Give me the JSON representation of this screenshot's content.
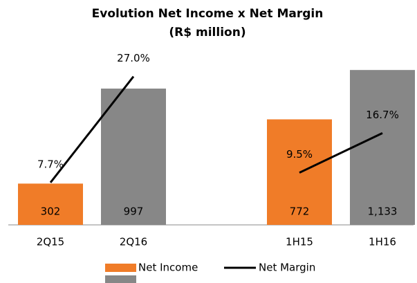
{
  "chart_data": {
    "type": "bar",
    "title": "Evolution Net Income x Net Margin",
    "subtitle": "(R$ million)",
    "categories": [
      "2Q15",
      "2Q16",
      null,
      "1H15",
      "1H16"
    ],
    "series": [
      {
        "name": "Net Income",
        "type": "bar",
        "colors": [
          "#f07c28",
          "#878787",
          null,
          "#f07c28",
          "#878787"
        ],
        "values": [
          302,
          997,
          null,
          772,
          1133
        ],
        "value_labels": [
          "302",
          "997",
          null,
          "772",
          "1,133"
        ]
      },
      {
        "name": "Net Margin",
        "type": "line",
        "axis": "y2",
        "color": "#000000",
        "values": [
          7.7,
          27.0,
          null,
          9.5,
          16.7
        ],
        "value_labels": [
          "7.7%",
          "27.0%",
          null,
          "9.5%",
          "16.7%"
        ]
      }
    ],
    "legend_colors": [
      "#f07c28",
      "#878787"
    ],
    "ylim": [
      0,
      1230
    ],
    "y2lim": [
      0,
      30.6
    ]
  }
}
